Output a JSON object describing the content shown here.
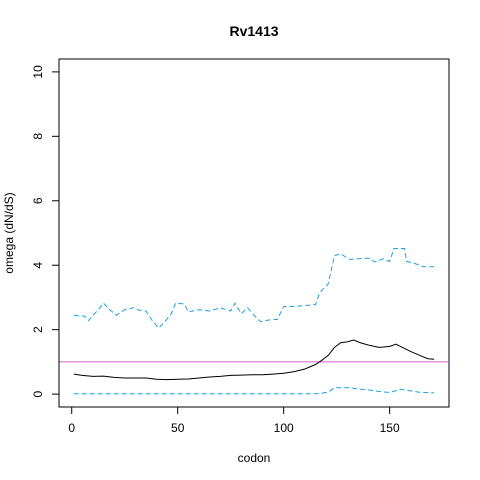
{
  "chart_data": {
    "type": "line",
    "title": "Rv1413",
    "xlabel": "codon",
    "ylabel": "omega (dN/dS)",
    "xlim": [
      -6,
      178
    ],
    "ylim": [
      -0.4,
      10.4
    ],
    "xticks": [
      0,
      50,
      100,
      150
    ],
    "yticks": [
      0,
      2,
      4,
      6,
      8,
      10
    ],
    "grid": false,
    "reference_line": {
      "y": 1,
      "color": "#cc66cc"
    },
    "series": [
      {
        "style": "solid",
        "color": "#000000",
        "points": [
          [
            1,
            0.62
          ],
          [
            5,
            0.58
          ],
          [
            10,
            0.55
          ],
          [
            15,
            0.56
          ],
          [
            20,
            0.52
          ],
          [
            25,
            0.5
          ],
          [
            30,
            0.5
          ],
          [
            35,
            0.5
          ],
          [
            40,
            0.46
          ],
          [
            45,
            0.45
          ],
          [
            50,
            0.46
          ],
          [
            55,
            0.47
          ],
          [
            60,
            0.5
          ],
          [
            65,
            0.53
          ],
          [
            70,
            0.55
          ],
          [
            75,
            0.58
          ],
          [
            80,
            0.59
          ],
          [
            85,
            0.6
          ],
          [
            90,
            0.6
          ],
          [
            95,
            0.62
          ],
          [
            100,
            0.65
          ],
          [
            105,
            0.7
          ],
          [
            110,
            0.78
          ],
          [
            115,
            0.92
          ],
          [
            118,
            1.05
          ],
          [
            121,
            1.2
          ],
          [
            124,
            1.45
          ],
          [
            127,
            1.6
          ],
          [
            130,
            1.62
          ],
          [
            133,
            1.68
          ],
          [
            136,
            1.6
          ],
          [
            140,
            1.52
          ],
          [
            145,
            1.45
          ],
          [
            150,
            1.48
          ],
          [
            153,
            1.55
          ],
          [
            156,
            1.45
          ],
          [
            160,
            1.32
          ],
          [
            165,
            1.18
          ],
          [
            168,
            1.1
          ],
          [
            171,
            1.08
          ]
        ]
      },
      {
        "style": "dashed",
        "color": "#1aa0e0",
        "points": [
          [
            1,
            2.45
          ],
          [
            6,
            2.42
          ],
          [
            8,
            2.28
          ],
          [
            10,
            2.45
          ],
          [
            12,
            2.58
          ],
          [
            15,
            2.82
          ],
          [
            18,
            2.62
          ],
          [
            21,
            2.45
          ],
          [
            25,
            2.62
          ],
          [
            29,
            2.68
          ],
          [
            32,
            2.6
          ],
          [
            35,
            2.58
          ],
          [
            38,
            2.28
          ],
          [
            41,
            2.05
          ],
          [
            44,
            2.25
          ],
          [
            47,
            2.5
          ],
          [
            49,
            2.82
          ],
          [
            53,
            2.8
          ],
          [
            55,
            2.55
          ],
          [
            60,
            2.62
          ],
          [
            65,
            2.58
          ],
          [
            70,
            2.68
          ],
          [
            73,
            2.62
          ],
          [
            75,
            2.58
          ],
          [
            77,
            2.82
          ],
          [
            80,
            2.5
          ],
          [
            83,
            2.68
          ],
          [
            86,
            2.45
          ],
          [
            89,
            2.25
          ],
          [
            93,
            2.3
          ],
          [
            97,
            2.32
          ],
          [
            100,
            2.72
          ],
          [
            105,
            2.72
          ],
          [
            110,
            2.75
          ],
          [
            115,
            2.78
          ],
          [
            117,
            3.15
          ],
          [
            121,
            3.42
          ],
          [
            124,
            4.3
          ],
          [
            127,
            4.35
          ],
          [
            131,
            4.18
          ],
          [
            135,
            4.2
          ],
          [
            140,
            4.22
          ],
          [
            143,
            4.1
          ],
          [
            147,
            4.2
          ],
          [
            150,
            4.12
          ],
          [
            152,
            4.52
          ],
          [
            157,
            4.52
          ],
          [
            158,
            4.12
          ],
          [
            162,
            4.05
          ],
          [
            166,
            3.95
          ],
          [
            171,
            3.95
          ]
        ]
      },
      {
        "style": "dashed",
        "color": "#1aa0e0",
        "points": [
          [
            1,
            0.01
          ],
          [
            115,
            0.01
          ],
          [
            118,
            0.03
          ],
          [
            121,
            0.06
          ],
          [
            124,
            0.2
          ],
          [
            128,
            0.2
          ],
          [
            131,
            0.2
          ],
          [
            135,
            0.16
          ],
          [
            140,
            0.13
          ],
          [
            145,
            0.08
          ],
          [
            150,
            0.05
          ],
          [
            155,
            0.15
          ],
          [
            160,
            0.1
          ],
          [
            165,
            0.05
          ],
          [
            171,
            0.04
          ]
        ]
      }
    ]
  }
}
